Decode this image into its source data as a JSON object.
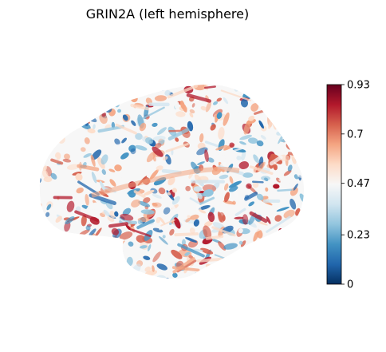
{
  "figure": {
    "title": "GRIN2A (left hemisphere)"
  },
  "colorbar": {
    "colormap": "RdBu_r",
    "min": 0,
    "max": 0.93,
    "ticks": [
      "0",
      "0.23",
      "0.47",
      "0.7",
      "0.93"
    ],
    "stops": [
      "#053061",
      "#2166ac",
      "#4393c3",
      "#92c5de",
      "#d1e5f0",
      "#f7f7f7",
      "#fddbc7",
      "#f4a582",
      "#d6604d",
      "#b2182b",
      "#67001f"
    ]
  },
  "surface": {
    "view": "left lateral",
    "base_color": "#f7f7f7",
    "dark_blue": "#2166ac",
    "dark_red": "#b2182b"
  }
}
